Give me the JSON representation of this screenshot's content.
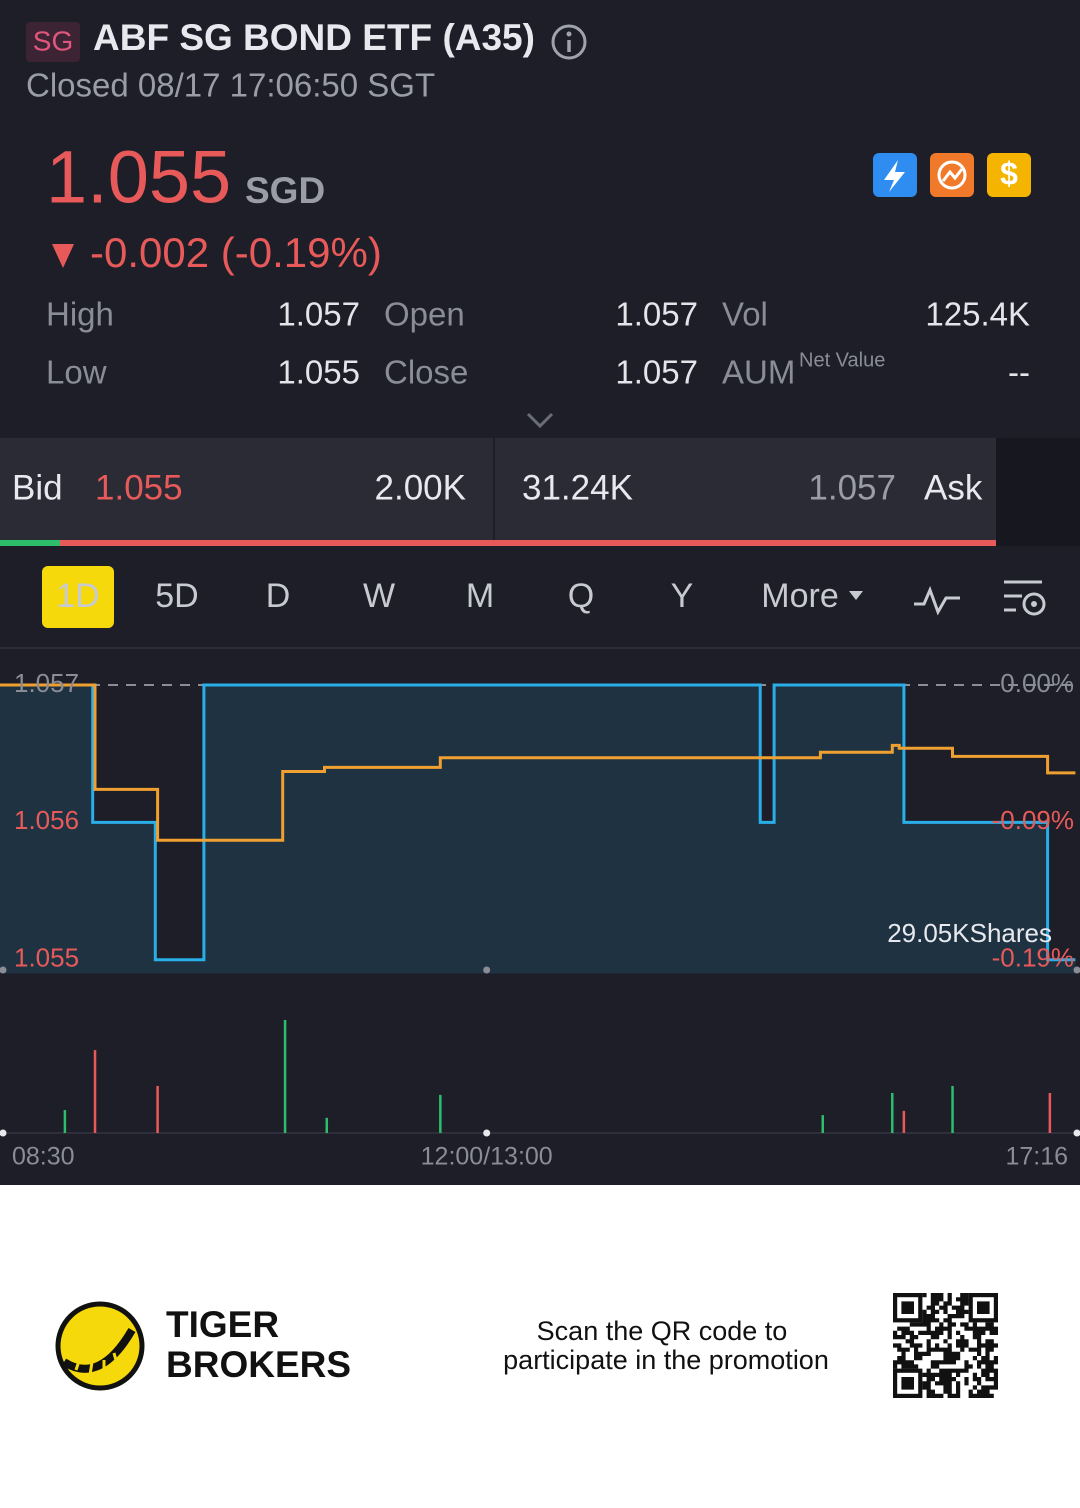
{
  "header": {
    "exchange": "SG",
    "title": "ABF SG BOND ETF (A35)",
    "status": "Closed 08/17 17:06:50 SGT"
  },
  "quote": {
    "price": "1.055",
    "currency": "SGD",
    "change": "-0.002 (-0.19%)"
  },
  "stats": [
    {
      "label": "High",
      "value": "1.057"
    },
    {
      "label": "Open",
      "value": "1.057"
    },
    {
      "label": "Vol",
      "value": "125.4K"
    },
    {
      "label": "Low",
      "value": "1.055"
    },
    {
      "label": "Close",
      "value": "1.057"
    },
    {
      "label": "AUM",
      "note": "Net Value",
      "value": "--"
    }
  ],
  "order_book": {
    "bid_label": "Bid",
    "bid_price": "1.055",
    "bid_size": "2.00K",
    "ask_size": "31.24K",
    "ask_price": "1.057",
    "ask_label": "Ask"
  },
  "tabs": [
    "1D",
    "5D",
    "D",
    "W",
    "M",
    "Q",
    "Y",
    "More"
  ],
  "active_tab": 0,
  "chart_data": {
    "type": "line",
    "xlim": [
      0,
      466
    ],
    "xticks": [
      {
        "value": 0,
        "label": "08:30"
      },
      {
        "value": 210,
        "label": "12:00/13:00"
      },
      {
        "value": 466,
        "label": "17:16"
      }
    ],
    "ylim": [
      1.0549,
      1.0572
    ],
    "yticks": [
      1.055,
      1.056,
      1.057
    ],
    "y2lim": [
      -0.1987,
      0.0189
    ],
    "y2ticks": [
      {
        "value": -0.1892,
        "label": "-0.19%"
      },
      {
        "value": -0.0946,
        "label": "-0.09%"
      },
      {
        "value": 0,
        "label": "0.00%"
      }
    ],
    "reference": 1.057,
    "series": [
      {
        "color": "#2aaee8",
        "x": [
          0,
          40,
          40,
          67,
          67,
          88,
          88,
          328,
          328,
          334,
          334,
          390,
          390,
          452,
          452,
          464
        ],
        "values": [
          1.057,
          1.057,
          1.056,
          1.056,
          1.055,
          1.055,
          1.057,
          1.057,
          1.056,
          1.056,
          1.057,
          1.057,
          1.056,
          1.056,
          1.055,
          1.055
        ]
      },
      {
        "color": "#f0a030",
        "x": [
          0,
          41,
          41,
          68,
          68,
          122,
          122,
          140,
          140,
          190,
          190,
          354,
          354,
          385,
          385,
          388,
          388,
          411,
          411,
          452,
          452,
          464
        ],
        "values": [
          1.057,
          1.057,
          1.05624,
          1.05624,
          1.05587,
          1.05587,
          1.05637,
          1.05637,
          1.0564,
          1.0564,
          1.05647,
          1.05647,
          1.05651,
          1.05651,
          1.05656,
          1.05656,
          1.05654,
          1.05654,
          1.05648,
          1.05648,
          1.05636,
          1.05636
        ]
      }
    ],
    "volume": {
      "ylim": [
        0,
        34200
      ],
      "x": [
        28,
        41,
        68,
        123,
        141,
        190,
        355,
        385,
        390,
        411,
        453
      ],
      "values": [
        5900,
        21300,
        12100,
        29050,
        3900,
        9800,
        4600,
        10300,
        5700,
        12100,
        10300
      ],
      "colors": [
        "#2ebd6b",
        "#e85a5a",
        "#e85a5a",
        "#2ebd6b",
        "#2ebd6b",
        "#2ebd6b",
        "#2ebd6b",
        "#2ebd6b",
        "#e85a5a",
        "#2ebd6b",
        "#e85a5a"
      ]
    },
    "annotation": "29.05KShares"
  },
  "footer": {
    "brand": [
      "TIGER",
      "BROKERS"
    ],
    "promo": [
      "Scan the QR code to",
      "participate in the promotion"
    ]
  }
}
